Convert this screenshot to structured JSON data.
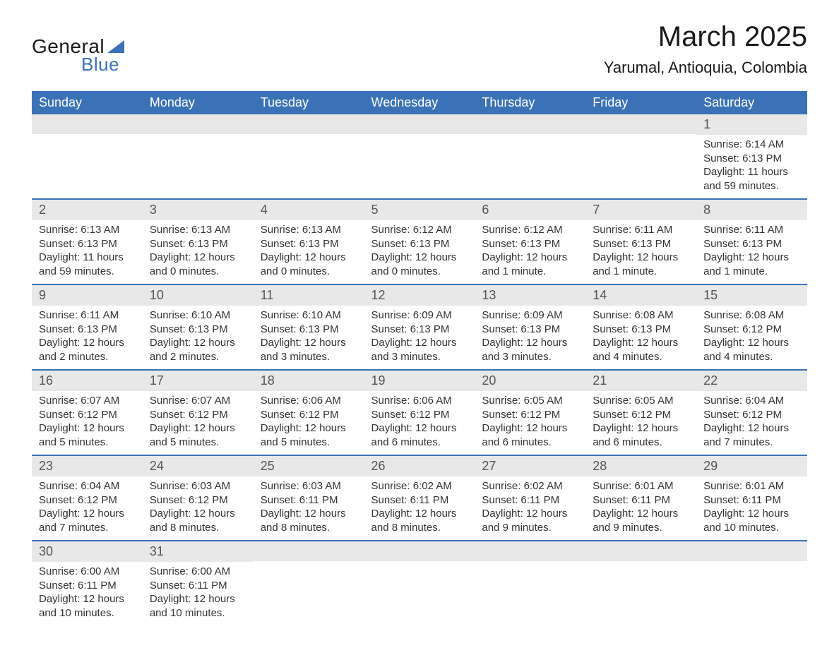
{
  "logo": {
    "word1": "General",
    "word2": "Blue"
  },
  "title": "March 2025",
  "location": "Yarumal, Antioquia, Colombia",
  "colors": {
    "header_bg": "#3a72b5",
    "header_text": "#ffffff",
    "day_num_bg": "#e8e8e8",
    "border": "#3a72b5"
  },
  "dayHeaders": [
    "Sunday",
    "Monday",
    "Tuesday",
    "Wednesday",
    "Thursday",
    "Friday",
    "Saturday"
  ],
  "weeks": [
    [
      null,
      null,
      null,
      null,
      null,
      null,
      {
        "n": "1",
        "sunrise": "Sunrise: 6:14 AM",
        "sunset": "Sunset: 6:13 PM",
        "daylight1": "Daylight: 11 hours",
        "daylight2": "and 59 minutes."
      }
    ],
    [
      {
        "n": "2",
        "sunrise": "Sunrise: 6:13 AM",
        "sunset": "Sunset: 6:13 PM",
        "daylight1": "Daylight: 11 hours",
        "daylight2": "and 59 minutes."
      },
      {
        "n": "3",
        "sunrise": "Sunrise: 6:13 AM",
        "sunset": "Sunset: 6:13 PM",
        "daylight1": "Daylight: 12 hours",
        "daylight2": "and 0 minutes."
      },
      {
        "n": "4",
        "sunrise": "Sunrise: 6:13 AM",
        "sunset": "Sunset: 6:13 PM",
        "daylight1": "Daylight: 12 hours",
        "daylight2": "and 0 minutes."
      },
      {
        "n": "5",
        "sunrise": "Sunrise: 6:12 AM",
        "sunset": "Sunset: 6:13 PM",
        "daylight1": "Daylight: 12 hours",
        "daylight2": "and 0 minutes."
      },
      {
        "n": "6",
        "sunrise": "Sunrise: 6:12 AM",
        "sunset": "Sunset: 6:13 PM",
        "daylight1": "Daylight: 12 hours",
        "daylight2": "and 1 minute."
      },
      {
        "n": "7",
        "sunrise": "Sunrise: 6:11 AM",
        "sunset": "Sunset: 6:13 PM",
        "daylight1": "Daylight: 12 hours",
        "daylight2": "and 1 minute."
      },
      {
        "n": "8",
        "sunrise": "Sunrise: 6:11 AM",
        "sunset": "Sunset: 6:13 PM",
        "daylight1": "Daylight: 12 hours",
        "daylight2": "and 1 minute."
      }
    ],
    [
      {
        "n": "9",
        "sunrise": "Sunrise: 6:11 AM",
        "sunset": "Sunset: 6:13 PM",
        "daylight1": "Daylight: 12 hours",
        "daylight2": "and 2 minutes."
      },
      {
        "n": "10",
        "sunrise": "Sunrise: 6:10 AM",
        "sunset": "Sunset: 6:13 PM",
        "daylight1": "Daylight: 12 hours",
        "daylight2": "and 2 minutes."
      },
      {
        "n": "11",
        "sunrise": "Sunrise: 6:10 AM",
        "sunset": "Sunset: 6:13 PM",
        "daylight1": "Daylight: 12 hours",
        "daylight2": "and 3 minutes."
      },
      {
        "n": "12",
        "sunrise": "Sunrise: 6:09 AM",
        "sunset": "Sunset: 6:13 PM",
        "daylight1": "Daylight: 12 hours",
        "daylight2": "and 3 minutes."
      },
      {
        "n": "13",
        "sunrise": "Sunrise: 6:09 AM",
        "sunset": "Sunset: 6:13 PM",
        "daylight1": "Daylight: 12 hours",
        "daylight2": "and 3 minutes."
      },
      {
        "n": "14",
        "sunrise": "Sunrise: 6:08 AM",
        "sunset": "Sunset: 6:13 PM",
        "daylight1": "Daylight: 12 hours",
        "daylight2": "and 4 minutes."
      },
      {
        "n": "15",
        "sunrise": "Sunrise: 6:08 AM",
        "sunset": "Sunset: 6:12 PM",
        "daylight1": "Daylight: 12 hours",
        "daylight2": "and 4 minutes."
      }
    ],
    [
      {
        "n": "16",
        "sunrise": "Sunrise: 6:07 AM",
        "sunset": "Sunset: 6:12 PM",
        "daylight1": "Daylight: 12 hours",
        "daylight2": "and 5 minutes."
      },
      {
        "n": "17",
        "sunrise": "Sunrise: 6:07 AM",
        "sunset": "Sunset: 6:12 PM",
        "daylight1": "Daylight: 12 hours",
        "daylight2": "and 5 minutes."
      },
      {
        "n": "18",
        "sunrise": "Sunrise: 6:06 AM",
        "sunset": "Sunset: 6:12 PM",
        "daylight1": "Daylight: 12 hours",
        "daylight2": "and 5 minutes."
      },
      {
        "n": "19",
        "sunrise": "Sunrise: 6:06 AM",
        "sunset": "Sunset: 6:12 PM",
        "daylight1": "Daylight: 12 hours",
        "daylight2": "and 6 minutes."
      },
      {
        "n": "20",
        "sunrise": "Sunrise: 6:05 AM",
        "sunset": "Sunset: 6:12 PM",
        "daylight1": "Daylight: 12 hours",
        "daylight2": "and 6 minutes."
      },
      {
        "n": "21",
        "sunrise": "Sunrise: 6:05 AM",
        "sunset": "Sunset: 6:12 PM",
        "daylight1": "Daylight: 12 hours",
        "daylight2": "and 6 minutes."
      },
      {
        "n": "22",
        "sunrise": "Sunrise: 6:04 AM",
        "sunset": "Sunset: 6:12 PM",
        "daylight1": "Daylight: 12 hours",
        "daylight2": "and 7 minutes."
      }
    ],
    [
      {
        "n": "23",
        "sunrise": "Sunrise: 6:04 AM",
        "sunset": "Sunset: 6:12 PM",
        "daylight1": "Daylight: 12 hours",
        "daylight2": "and 7 minutes."
      },
      {
        "n": "24",
        "sunrise": "Sunrise: 6:03 AM",
        "sunset": "Sunset: 6:12 PM",
        "daylight1": "Daylight: 12 hours",
        "daylight2": "and 8 minutes."
      },
      {
        "n": "25",
        "sunrise": "Sunrise: 6:03 AM",
        "sunset": "Sunset: 6:11 PM",
        "daylight1": "Daylight: 12 hours",
        "daylight2": "and 8 minutes."
      },
      {
        "n": "26",
        "sunrise": "Sunrise: 6:02 AM",
        "sunset": "Sunset: 6:11 PM",
        "daylight1": "Daylight: 12 hours",
        "daylight2": "and 8 minutes."
      },
      {
        "n": "27",
        "sunrise": "Sunrise: 6:02 AM",
        "sunset": "Sunset: 6:11 PM",
        "daylight1": "Daylight: 12 hours",
        "daylight2": "and 9 minutes."
      },
      {
        "n": "28",
        "sunrise": "Sunrise: 6:01 AM",
        "sunset": "Sunset: 6:11 PM",
        "daylight1": "Daylight: 12 hours",
        "daylight2": "and 9 minutes."
      },
      {
        "n": "29",
        "sunrise": "Sunrise: 6:01 AM",
        "sunset": "Sunset: 6:11 PM",
        "daylight1": "Daylight: 12 hours",
        "daylight2": "and 10 minutes."
      }
    ],
    [
      {
        "n": "30",
        "sunrise": "Sunrise: 6:00 AM",
        "sunset": "Sunset: 6:11 PM",
        "daylight1": "Daylight: 12 hours",
        "daylight2": "and 10 minutes."
      },
      {
        "n": "31",
        "sunrise": "Sunrise: 6:00 AM",
        "sunset": "Sunset: 6:11 PM",
        "daylight1": "Daylight: 12 hours",
        "daylight2": "and 10 minutes."
      },
      null,
      null,
      null,
      null,
      null
    ]
  ]
}
